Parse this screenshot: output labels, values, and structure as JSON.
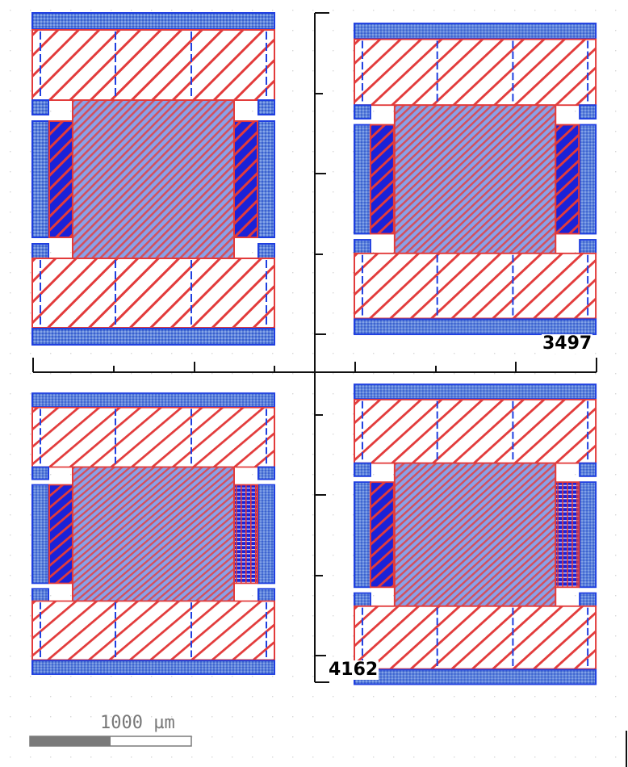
{
  "canvas": {
    "background": "#ffffff",
    "grid_dot_color": "#d6d6d6"
  },
  "colors": {
    "blue_fill": "#5b82d9",
    "blue_dark": "#1a22d8",
    "blue_outline": "#1f3fe0",
    "red_hatch": "#e23b3b",
    "ruler": "#111111",
    "scalebar_fill": "#7a7a7a"
  },
  "measurements": {
    "horizontal_label": "3497",
    "vertical_label": "4162"
  },
  "scale_bar": {
    "label": "1000 µm"
  },
  "layers": [
    "metal-pad-hatch",
    "red-diagonal-hatch",
    "blue-crosshatch",
    "dark-blue-strip"
  ]
}
